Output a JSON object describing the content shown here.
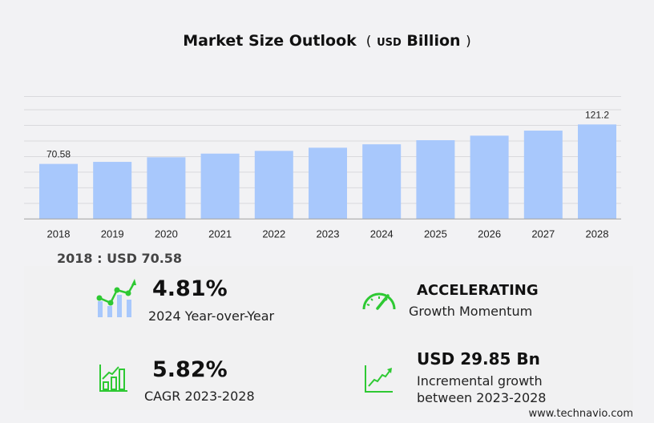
{
  "chart_data": {
    "type": "bar",
    "title": "Market Size Outlook",
    "unit_prefix": "USD",
    "unit_suffix": "Billion",
    "categories": [
      "2018",
      "2019",
      "2020",
      "2021",
      "2022",
      "2023",
      "2024",
      "2025",
      "2026",
      "2027",
      "2028"
    ],
    "values": [
      70.58,
      73.2,
      79.1,
      83.8,
      87.3,
      91.35,
      95.74,
      101.0,
      106.8,
      113.3,
      121.2
    ],
    "data_labels": {
      "0": "70.58",
      "10": "121.2"
    },
    "ylim": [
      0,
      157
    ],
    "grid": true,
    "bar_color": "#a8c8fc"
  },
  "headline": "2018 : USD  70.58",
  "kpis": {
    "yoy": {
      "value": "4.81%",
      "label": "2024 Year-over-Year",
      "icon": "bar-line-growth-icon"
    },
    "momentum": {
      "value": "ACCELERATING",
      "label": "Growth Momentum",
      "icon": "speedometer-icon"
    },
    "cagr": {
      "value": "5.82%",
      "label": "CAGR 2023-2028",
      "icon": "bar-chart-growth-icon"
    },
    "incremental": {
      "value": "USD 29.85 Bn",
      "label1": "Incremental growth",
      "label2": "between 2023-2028",
      "icon": "line-chart-up-icon"
    }
  },
  "accent_color": "#2ec933",
  "footer": "www.technavio.com"
}
